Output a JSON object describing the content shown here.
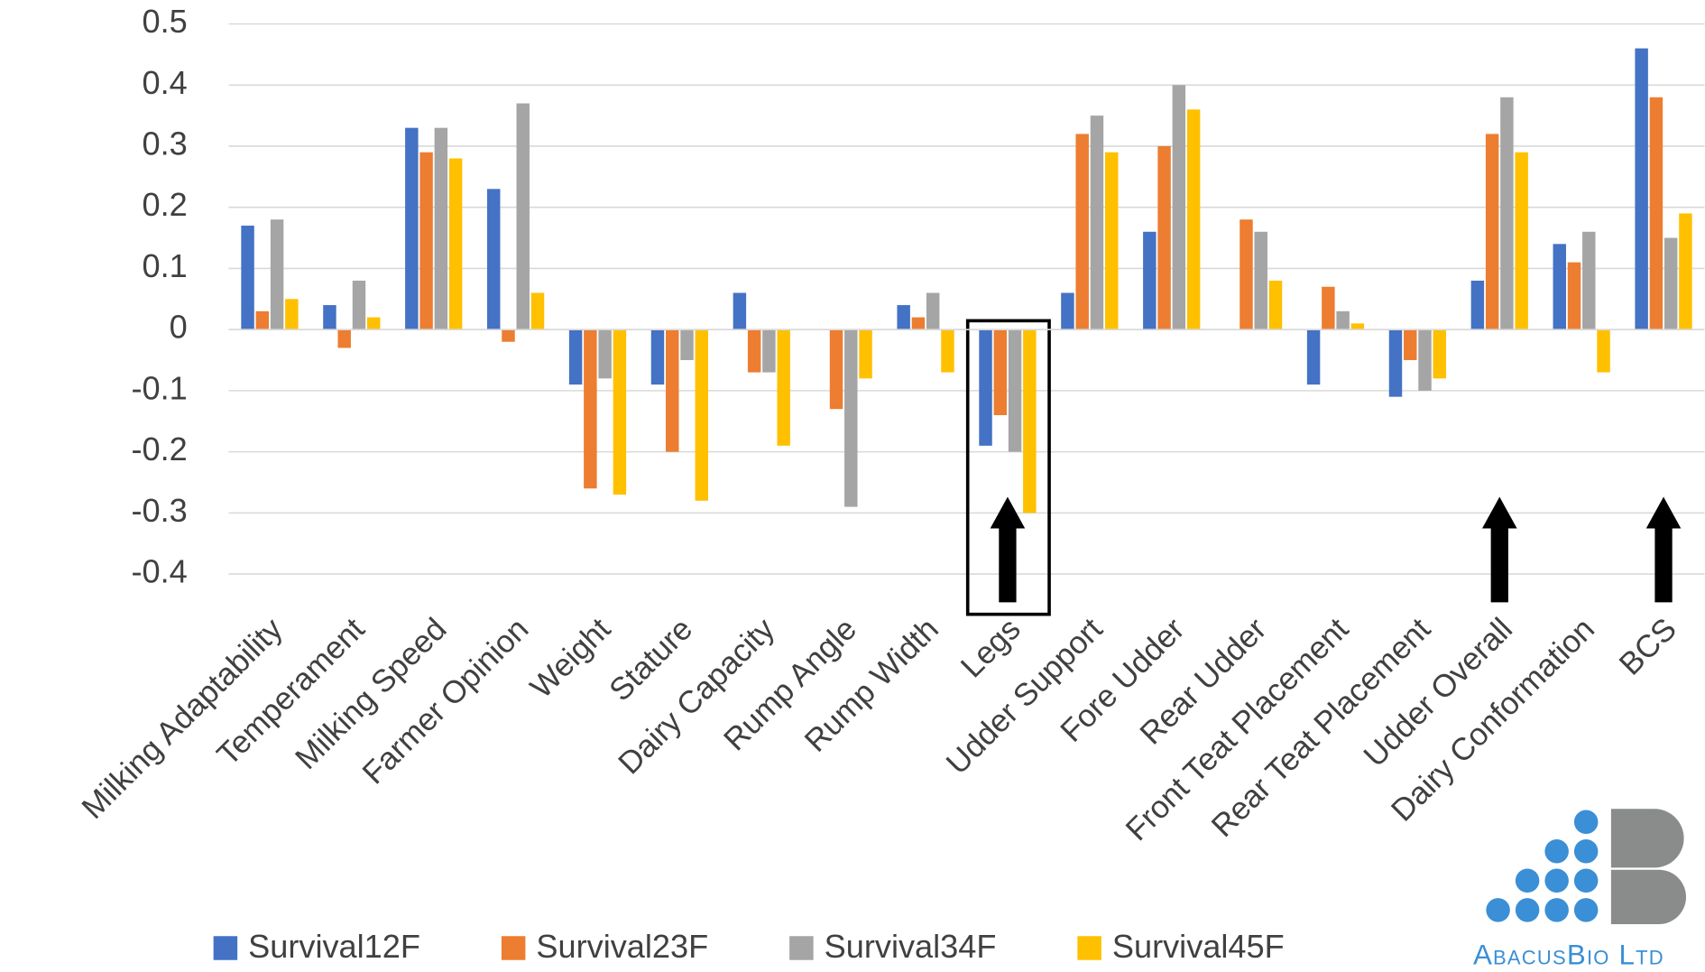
{
  "chart_data": {
    "type": "bar",
    "categories": [
      "Milking Adaptability",
      "Temperament",
      "Milking Speed",
      "Farmer Opinion",
      "Weight",
      "Stature",
      "Dairy Capacity",
      "Rump Angle",
      "Rump Width",
      "Legs",
      "Udder Support",
      "Fore Udder",
      "Rear Udder",
      "Front Teat Placement",
      "Rear Teat Placement",
      "Udder Overall",
      "Dairy Conformation",
      "BCS"
    ],
    "series": [
      {
        "name": "Survival12F",
        "color": "#4472c4",
        "values": [
          0.17,
          0.04,
          0.33,
          0.23,
          -0.09,
          -0.09,
          0.06,
          0,
          0.04,
          -0.19,
          0.06,
          0.16,
          0,
          -0.09,
          -0.11,
          0.08,
          0.14,
          0.46
        ]
      },
      {
        "name": "Survival23F",
        "color": "#ed7d31",
        "values": [
          0.03,
          -0.03,
          0.29,
          -0.02,
          -0.26,
          -0.2,
          -0.07,
          -0.13,
          0.02,
          -0.14,
          0.32,
          0.3,
          0.18,
          0.07,
          -0.05,
          0.32,
          0.11,
          0.38
        ]
      },
      {
        "name": "Survival34F",
        "color": "#a5a5a5",
        "values": [
          0.18,
          0.08,
          0.33,
          0.37,
          -0.08,
          -0.05,
          -0.07,
          -0.29,
          0.06,
          -0.2,
          0.35,
          0.4,
          0.16,
          0.03,
          -0.1,
          0.38,
          0.16,
          0.15
        ]
      },
      {
        "name": "Survival45F",
        "color": "#ffc000",
        "values": [
          0.05,
          0.02,
          0.28,
          0.06,
          -0.27,
          -0.28,
          -0.19,
          -0.08,
          -0.07,
          -0.3,
          0.29,
          0.36,
          0.08,
          0.01,
          -0.08,
          0.29,
          -0.07,
          0.19
        ]
      }
    ],
    "ylim": [
      -0.4,
      0.5
    ],
    "yticks": [
      0.5,
      0.4,
      0.3,
      0.2,
      0.1,
      0,
      -0.1,
      -0.2,
      -0.3,
      -0.4
    ],
    "grid": true,
    "legend": "bottom",
    "logo": "AbacusBio Ltd"
  }
}
